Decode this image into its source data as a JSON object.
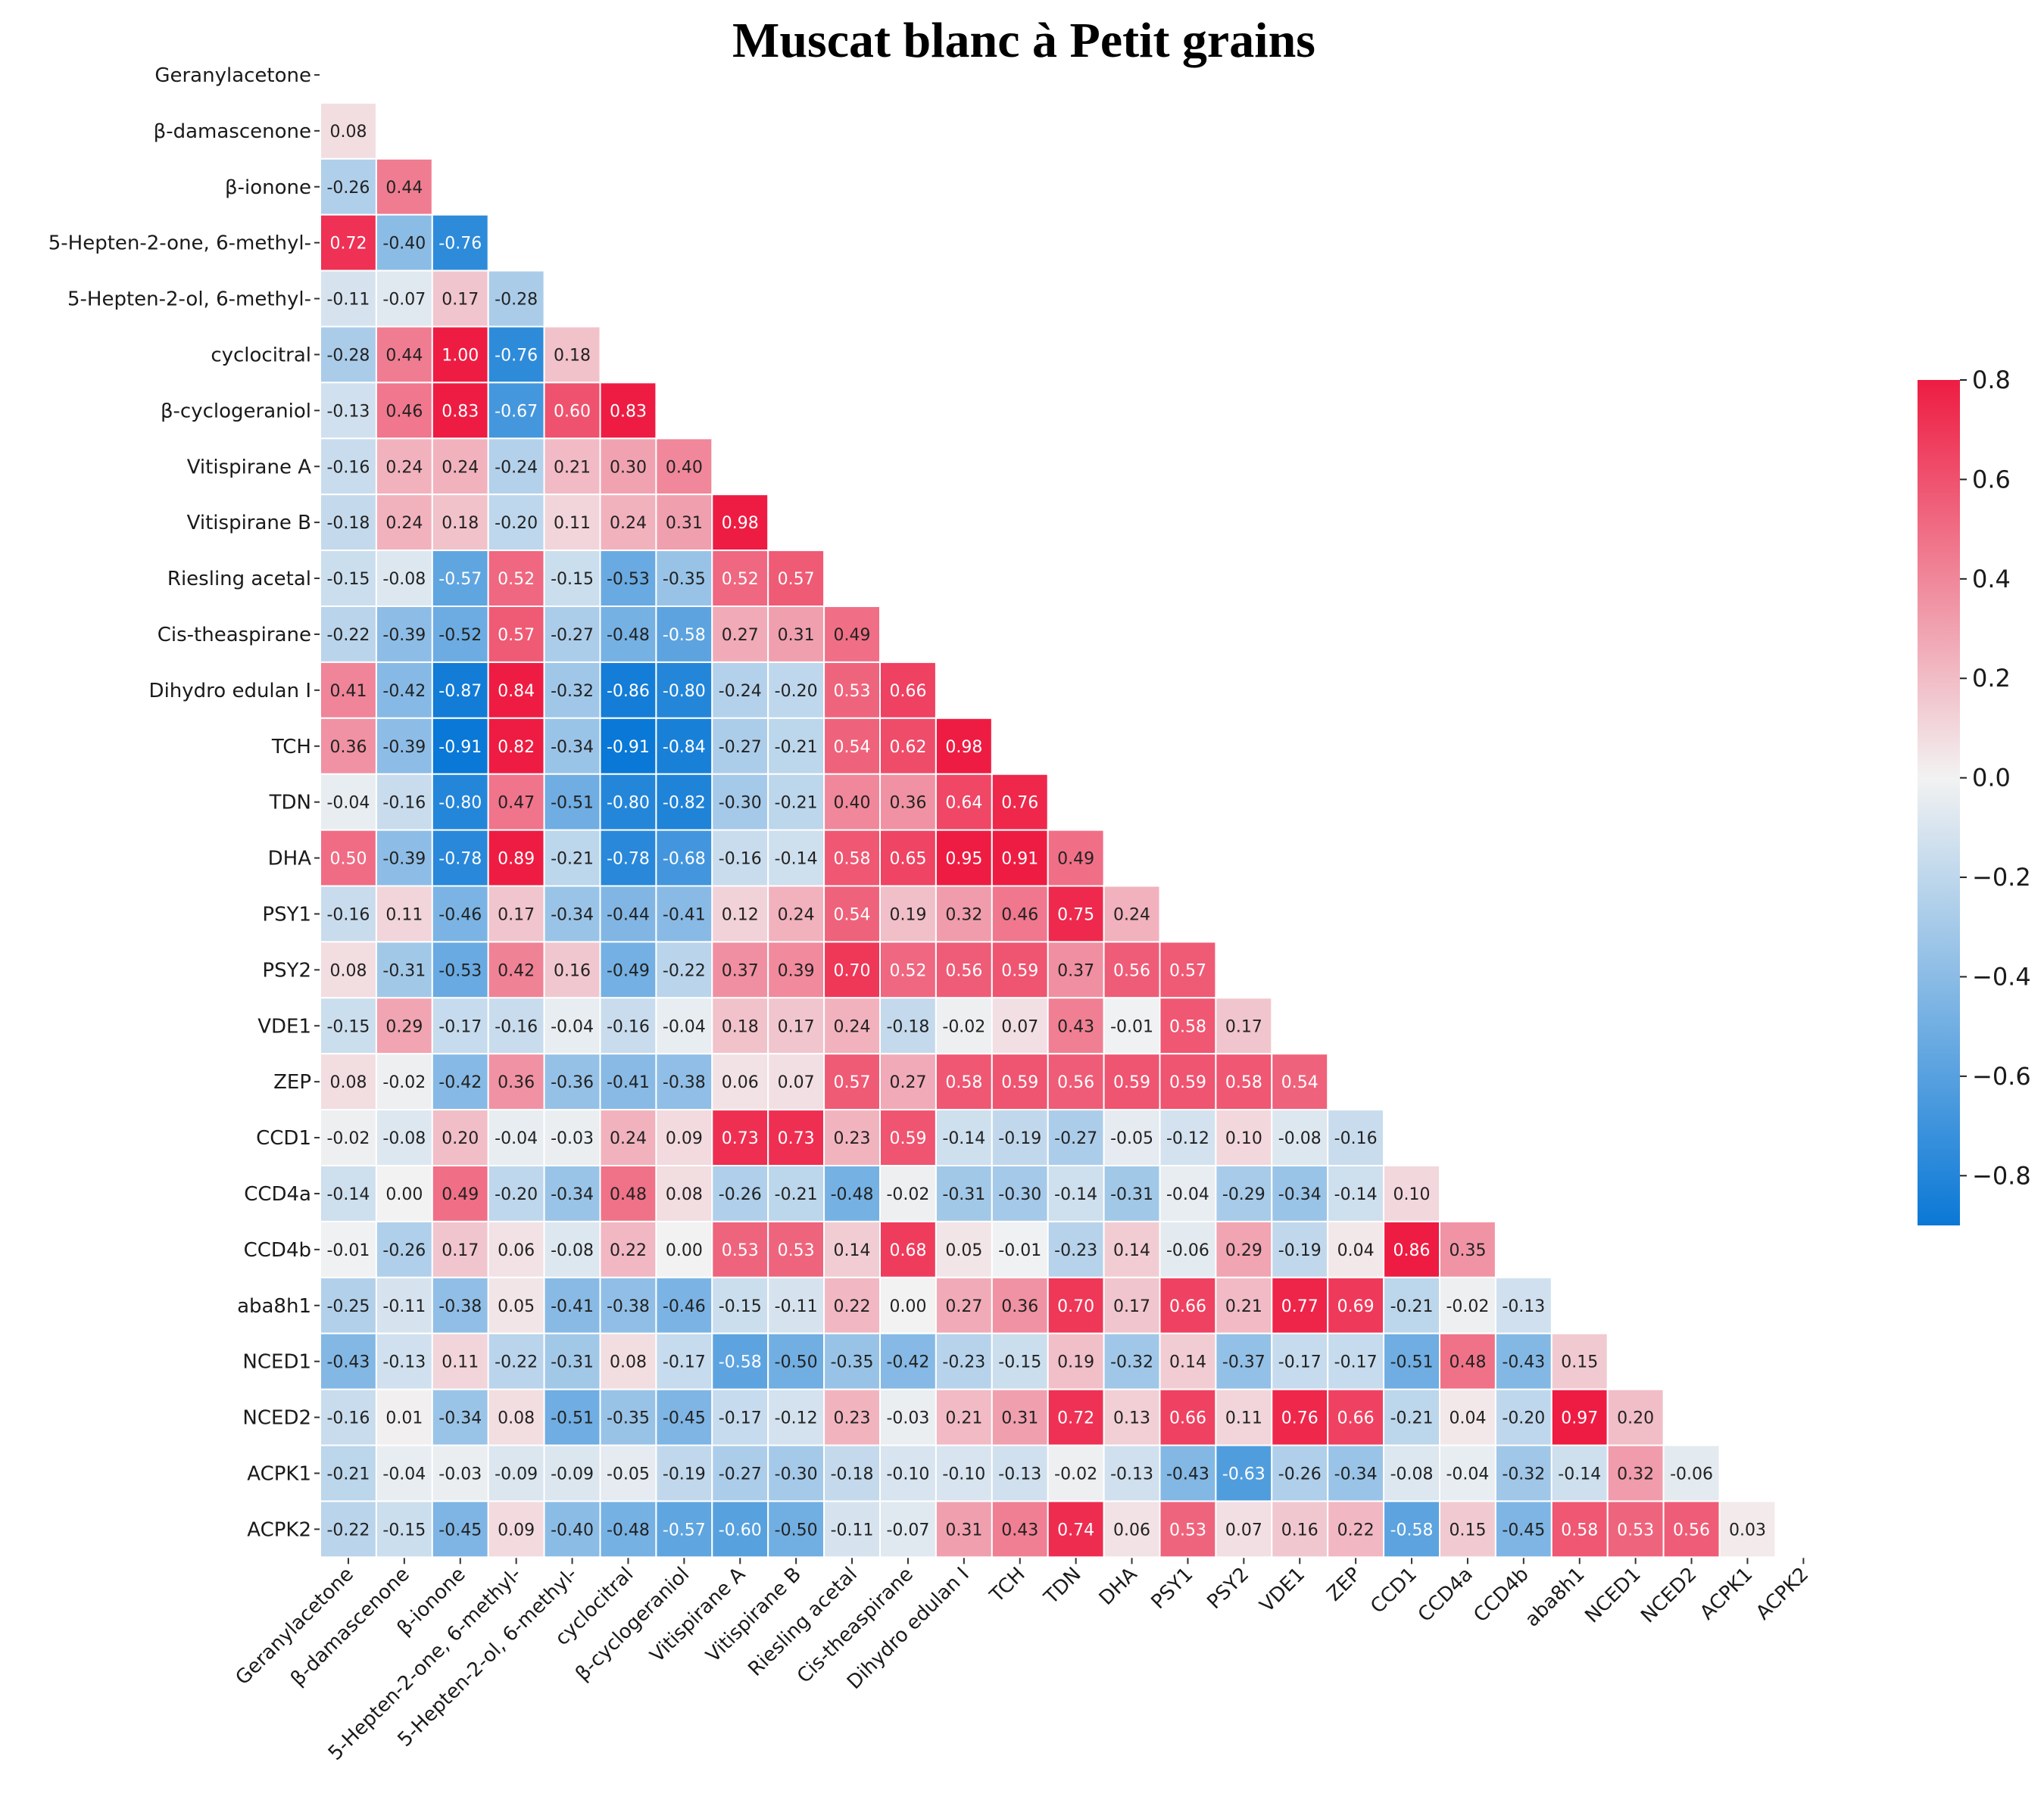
{
  "chart_data": {
    "type": "heatmap",
    "title": "Muscat blanc à Petit grains",
    "labels": [
      "Geranylacetone",
      "β-damascenone",
      "β-ionone",
      "5-Hepten-2-one, 6-methyl-",
      "5-Hepten-2-ol, 6-methyl-",
      "cyclocitral",
      "β-cyclogeraniol",
      "Vitispirane A",
      "Vitispirane B",
      "Riesling acetal",
      "Cis-theaspirane",
      "Dihydro edulan I",
      "TCH",
      "TDN",
      "DHA",
      "PSY1",
      "PSY2",
      "VDE1",
      "ZEP",
      "CCD1",
      "CCD4a",
      "CCD4b",
      "aba8h1",
      "NCED1",
      "NCED2",
      "ACPK1",
      "ACPK2"
    ],
    "mask": "upper triangle including diagonal",
    "matrix": [
      [],
      [
        0.08
      ],
      [
        -0.26,
        0.44
      ],
      [
        0.72,
        -0.4,
        -0.76
      ],
      [
        -0.11,
        -0.07,
        0.17,
        -0.28
      ],
      [
        -0.28,
        0.44,
        1.0,
        -0.76,
        0.18
      ],
      [
        -0.13,
        0.46,
        0.83,
        -0.67,
        0.6,
        0.83
      ],
      [
        -0.16,
        0.24,
        0.24,
        -0.24,
        0.21,
        0.3,
        0.4
      ],
      [
        -0.18,
        0.24,
        0.18,
        -0.2,
        0.11,
        0.24,
        0.31,
        0.98
      ],
      [
        -0.15,
        -0.08,
        -0.57,
        0.52,
        -0.15,
        -0.53,
        -0.35,
        0.52,
        0.57
      ],
      [
        -0.22,
        -0.39,
        -0.52,
        0.57,
        -0.27,
        -0.48,
        -0.58,
        0.27,
        0.31,
        0.49
      ],
      [
        0.41,
        -0.42,
        -0.87,
        0.84,
        -0.32,
        -0.86,
        -0.8,
        -0.24,
        -0.2,
        0.53,
        0.66
      ],
      [
        0.36,
        -0.39,
        -0.91,
        0.82,
        -0.34,
        -0.91,
        -0.84,
        -0.27,
        -0.21,
        0.54,
        0.62,
        0.98
      ],
      [
        -0.04,
        -0.16,
        -0.8,
        0.47,
        -0.51,
        -0.8,
        -0.82,
        -0.3,
        -0.21,
        0.4,
        0.36,
        0.64,
        0.76
      ],
      [
        0.5,
        -0.39,
        -0.78,
        0.89,
        -0.21,
        -0.78,
        -0.68,
        -0.16,
        -0.14,
        0.58,
        0.65,
        0.95,
        0.91,
        0.49
      ],
      [
        -0.16,
        0.11,
        -0.46,
        0.17,
        -0.34,
        -0.44,
        -0.41,
        0.12,
        0.24,
        0.54,
        0.19,
        0.32,
        0.46,
        0.75,
        0.24
      ],
      [
        0.08,
        -0.31,
        -0.53,
        0.42,
        0.16,
        -0.49,
        -0.22,
        0.37,
        0.39,
        0.7,
        0.52,
        0.56,
        0.59,
        0.37,
        0.56,
        0.57
      ],
      [
        -0.15,
        0.29,
        -0.17,
        -0.16,
        -0.04,
        -0.16,
        -0.04,
        0.18,
        0.17,
        0.24,
        -0.18,
        -0.02,
        0.07,
        0.43,
        -0.01,
        0.58,
        0.17
      ],
      [
        0.08,
        -0.02,
        -0.42,
        0.36,
        -0.36,
        -0.41,
        -0.38,
        0.06,
        0.07,
        0.57,
        0.27,
        0.58,
        0.59,
        0.56,
        0.59,
        0.59,
        0.58,
        0.54
      ],
      [
        -0.02,
        -0.08,
        0.2,
        -0.04,
        -0.03,
        0.24,
        0.09,
        0.73,
        0.73,
        0.23,
        0.59,
        -0.14,
        -0.19,
        -0.27,
        -0.05,
        -0.12,
        0.1,
        -0.08,
        -0.16
      ],
      [
        -0.14,
        0.0,
        0.49,
        -0.2,
        -0.34,
        0.48,
        0.08,
        -0.26,
        -0.21,
        -0.48,
        -0.02,
        -0.31,
        -0.3,
        -0.14,
        -0.31,
        -0.04,
        -0.29,
        -0.34,
        -0.14,
        0.1
      ],
      [
        -0.01,
        -0.26,
        0.17,
        0.06,
        -0.08,
        0.22,
        0.0,
        0.53,
        0.53,
        0.14,
        0.68,
        0.05,
        -0.01,
        -0.23,
        0.14,
        -0.06,
        0.29,
        -0.19,
        0.04,
        0.86,
        0.35
      ],
      [
        -0.25,
        -0.11,
        -0.38,
        0.05,
        -0.41,
        -0.38,
        -0.46,
        -0.15,
        -0.11,
        0.22,
        0.0,
        0.27,
        0.36,
        0.7,
        0.17,
        0.66,
        0.21,
        0.77,
        0.69,
        -0.21,
        -0.02,
        -0.13
      ],
      [
        -0.43,
        -0.13,
        0.11,
        -0.22,
        -0.31,
        0.08,
        -0.17,
        -0.58,
        -0.5,
        -0.35,
        -0.42,
        -0.23,
        -0.15,
        0.19,
        -0.32,
        0.14,
        -0.37,
        -0.17,
        -0.17,
        -0.51,
        0.48,
        -0.43,
        0.15
      ],
      [
        -0.16,
        0.01,
        -0.34,
        0.08,
        -0.51,
        -0.35,
        -0.45,
        -0.17,
        -0.12,
        0.23,
        -0.03,
        0.21,
        0.31,
        0.72,
        0.13,
        0.66,
        0.11,
        0.76,
        0.66,
        -0.21,
        0.04,
        -0.2,
        0.97,
        0.2
      ],
      [
        -0.21,
        -0.04,
        -0.03,
        -0.09,
        -0.09,
        -0.05,
        -0.19,
        -0.27,
        -0.3,
        -0.18,
        -0.1,
        -0.1,
        -0.13,
        -0.02,
        -0.13,
        -0.43,
        -0.63,
        -0.26,
        -0.34,
        -0.08,
        -0.04,
        -0.32,
        -0.14,
        0.32,
        -0.06
      ],
      [
        -0.22,
        -0.15,
        -0.45,
        0.09,
        -0.4,
        -0.48,
        -0.57,
        -0.6,
        -0.5,
        -0.11,
        -0.07,
        0.31,
        0.43,
        0.74,
        0.06,
        0.53,
        0.07,
        0.16,
        0.22,
        -0.58,
        0.15,
        -0.45,
        0.58,
        0.53,
        0.56,
        0.03
      ]
    ],
    "vmin": -0.9,
    "vmax": 0.8,
    "colorbar": {
      "ticks": [
        0.8,
        0.6,
        0.4,
        0.2,
        0.0,
        -0.2,
        -0.4,
        -0.6,
        -0.8
      ],
      "tick_labels": [
        "0.8",
        "0.6",
        "0.4",
        "0.2",
        "0.0",
        "−0.2",
        "−0.4",
        "−0.6",
        "−0.8"
      ],
      "placement": "right"
    },
    "colors": {
      "negative": "#0a78d6",
      "center": "#f2f2f2",
      "positive": "#ee1c42",
      "gridline": "#ffffff"
    }
  }
}
